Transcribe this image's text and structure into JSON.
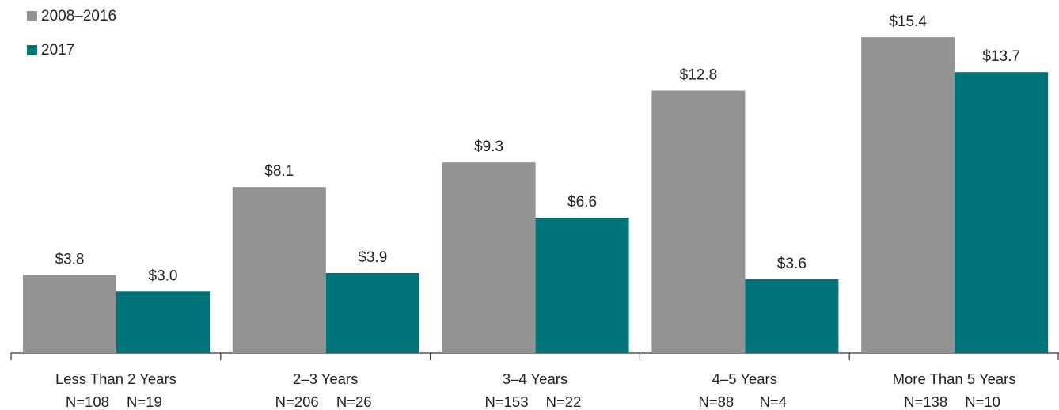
{
  "chart_data": {
    "type": "bar",
    "categories": [
      "Less Than 2 Years",
      "2–3 Years",
      "3–4 Years",
      "4–5 Years",
      "More Than 5 Years"
    ],
    "n_labels": [
      [
        "N=108",
        "N=19"
      ],
      [
        "N=206",
        "N=26"
      ],
      [
        "N=153",
        "N=22"
      ],
      [
        "N=88",
        "N=4"
      ],
      [
        "N=138",
        "N=10"
      ]
    ],
    "series": [
      {
        "name": "2008–2016",
        "color": "#939393",
        "values": [
          3.8,
          8.1,
          9.3,
          12.8,
          15.4
        ],
        "labels": [
          "$3.8",
          "$8.1",
          "$9.3",
          "$12.8",
          "$15.4"
        ]
      },
      {
        "name": "2017",
        "color": "#007479",
        "values": [
          3.0,
          3.9,
          6.6,
          3.6,
          13.7
        ],
        "labels": [
          "$3.0",
          "$3.9",
          "$6.6",
          "$3.6",
          "$13.7"
        ]
      }
    ],
    "ylim": [
      0,
      16
    ],
    "grid": false,
    "legend_position": "top-left"
  }
}
